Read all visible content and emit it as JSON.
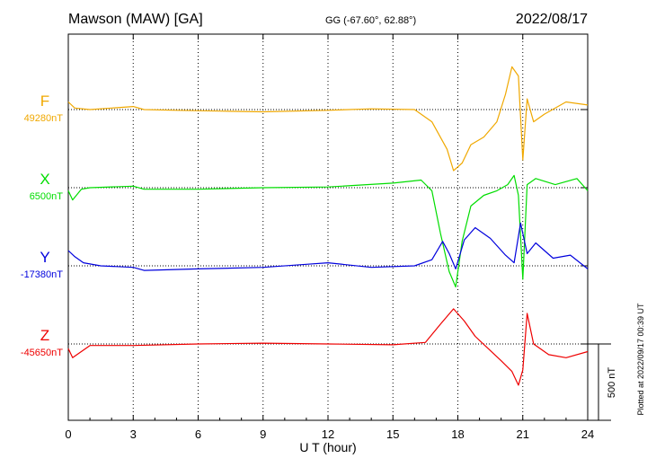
{
  "header": {
    "station": "Mawson (MAW)  [GA]",
    "coords": "GG (-67.60°,  62.88°)",
    "date": "2022/08/17"
  },
  "side_note": "Plotted at 2022/09/17 00:39 UT",
  "chart_data": {
    "type": "line",
    "xlabel": "U T (hour)",
    "xlim": [
      0,
      24
    ],
    "x_ticks": [
      "0",
      "3",
      "6",
      "9",
      "12",
      "15",
      "18",
      "21",
      "24"
    ],
    "grid": true,
    "scale_bar": {
      "label": "500 nT",
      "value_nT": 500
    },
    "series": [
      {
        "name": "F",
        "baseline_label": "49280nT",
        "baseline_nT": 49280,
        "color": "#f0a800",
        "points": [
          [
            0,
            49330
          ],
          [
            0.3,
            49290
          ],
          [
            1,
            49280
          ],
          [
            2,
            49290
          ],
          [
            3,
            49300
          ],
          [
            3.5,
            49280
          ],
          [
            5,
            49275
          ],
          [
            7,
            49270
          ],
          [
            9,
            49265
          ],
          [
            12,
            49275
          ],
          [
            14,
            49285
          ],
          [
            16,
            49280
          ],
          [
            16.8,
            49200
          ],
          [
            17.5,
            49020
          ],
          [
            17.8,
            48880
          ],
          [
            18.2,
            48930
          ],
          [
            18.6,
            49050
          ],
          [
            19.2,
            49100
          ],
          [
            19.8,
            49200
          ],
          [
            20.2,
            49380
          ],
          [
            20.5,
            49560
          ],
          [
            20.8,
            49500
          ],
          [
            21.0,
            48950
          ],
          [
            21.2,
            49350
          ],
          [
            21.5,
            49200
          ],
          [
            22,
            49250
          ],
          [
            23,
            49330
          ],
          [
            24,
            49310
          ]
        ]
      },
      {
        "name": "X",
        "baseline_label": "6500nT",
        "baseline_nT": 6500,
        "color": "#00dd00",
        "points": [
          [
            0,
            6480
          ],
          [
            0.2,
            6420
          ],
          [
            0.6,
            6490
          ],
          [
            1,
            6500
          ],
          [
            3,
            6510
          ],
          [
            3.5,
            6490
          ],
          [
            6,
            6490
          ],
          [
            9,
            6500
          ],
          [
            12,
            6505
          ],
          [
            15,
            6530
          ],
          [
            16.3,
            6550
          ],
          [
            16.8,
            6480
          ],
          [
            17.2,
            6200
          ],
          [
            17.6,
            5950
          ],
          [
            17.9,
            5850
          ],
          [
            18.2,
            6150
          ],
          [
            18.6,
            6380
          ],
          [
            19.2,
            6450
          ],
          [
            19.8,
            6480
          ],
          [
            20.3,
            6520
          ],
          [
            20.6,
            6580
          ],
          [
            20.8,
            6450
          ],
          [
            21.0,
            5900
          ],
          [
            21.2,
            6520
          ],
          [
            21.6,
            6560
          ],
          [
            22.5,
            6520
          ],
          [
            23.5,
            6560
          ],
          [
            24,
            6480
          ]
        ]
      },
      {
        "name": "Y",
        "baseline_label": "-17380nT",
        "baseline_nT": -17380,
        "color": "#0000dd",
        "points": [
          [
            0,
            -17280
          ],
          [
            0.3,
            -17320
          ],
          [
            0.7,
            -17360
          ],
          [
            1.5,
            -17380
          ],
          [
            3,
            -17390
          ],
          [
            3.5,
            -17410
          ],
          [
            6,
            -17400
          ],
          [
            9,
            -17390
          ],
          [
            11,
            -17370
          ],
          [
            12,
            -17360
          ],
          [
            14,
            -17390
          ],
          [
            16,
            -17380
          ],
          [
            16.8,
            -17340
          ],
          [
            17.3,
            -17220
          ],
          [
            17.6,
            -17300
          ],
          [
            17.9,
            -17400
          ],
          [
            18.3,
            -17210
          ],
          [
            18.8,
            -17130
          ],
          [
            19.5,
            -17200
          ],
          [
            20.2,
            -17310
          ],
          [
            20.6,
            -17360
          ],
          [
            20.9,
            -17100
          ],
          [
            21.2,
            -17300
          ],
          [
            21.6,
            -17230
          ],
          [
            22.4,
            -17330
          ],
          [
            23.2,
            -17310
          ],
          [
            24,
            -17400
          ]
        ]
      },
      {
        "name": "Z",
        "baseline_label": "-45650nT",
        "baseline_nT": -45650,
        "color": "#ee0000",
        "points": [
          [
            0,
            -45680
          ],
          [
            0.2,
            -45740
          ],
          [
            1,
            -45660
          ],
          [
            3,
            -45660
          ],
          [
            6,
            -45650
          ],
          [
            9,
            -45645
          ],
          [
            12,
            -45650
          ],
          [
            15,
            -45655
          ],
          [
            16.5,
            -45640
          ],
          [
            17.2,
            -45520
          ],
          [
            17.8,
            -45420
          ],
          [
            18.3,
            -45500
          ],
          [
            18.8,
            -45600
          ],
          [
            19.4,
            -45680
          ],
          [
            20.0,
            -45760
          ],
          [
            20.5,
            -45830
          ],
          [
            20.8,
            -45920
          ],
          [
            21.0,
            -45820
          ],
          [
            21.2,
            -45450
          ],
          [
            21.5,
            -45650
          ],
          [
            22.2,
            -45720
          ],
          [
            23,
            -45740
          ],
          [
            24,
            -45700
          ]
        ]
      }
    ]
  }
}
